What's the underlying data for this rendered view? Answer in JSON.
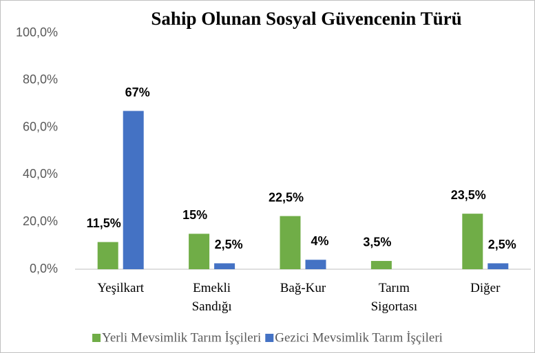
{
  "chart_data": {
    "type": "bar",
    "title": "Sahip Olunan Sosyal Güvencenin Türü",
    "categories": [
      "Yeşilkart",
      "Emekli Sandığı",
      "Bağ-Kur",
      "Tarım Sigortası",
      "Diğer"
    ],
    "series": [
      {
        "name": "Yerli Mevsimlik Tarım İşçileri",
        "color": "#70ad47",
        "values": [
          11.5,
          15,
          22.5,
          3.5,
          23.5
        ],
        "value_labels": [
          "11,5%",
          "15%",
          "22,5%",
          "3,5%",
          "23,5%"
        ]
      },
      {
        "name": "Gezici Mevsimlik Tarım İşçileri",
        "color": "#4472c4",
        "values": [
          67,
          2.5,
          4,
          null,
          2.5
        ],
        "value_labels": [
          "67%",
          "2,5%",
          "4%",
          null,
          "2,5%"
        ]
      }
    ],
    "ylim": [
      0,
      100
    ],
    "yticks": [
      {
        "value": 0,
        "label": "0,0%"
      },
      {
        "value": 20,
        "label": "20,0%"
      },
      {
        "value": 40,
        "label": "40,0%"
      },
      {
        "value": 60,
        "label": "60,0%"
      },
      {
        "value": 80,
        "label": "80,0%"
      },
      {
        "value": 100,
        "label": "100,0%"
      }
    ],
    "grid": false,
    "legend": "bottom"
  }
}
